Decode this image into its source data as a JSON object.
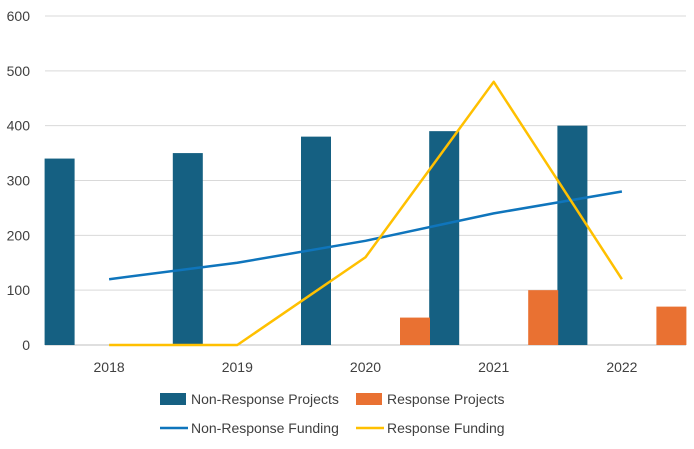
{
  "chart_data": {
    "type": "bar",
    "categories": [
      "2018",
      "2019",
      "2020",
      "2021",
      "2022"
    ],
    "ylim": [
      0,
      600
    ],
    "yticks": [
      0,
      100,
      200,
      300,
      400,
      500,
      600
    ],
    "grid": true,
    "legend_position": "bottom",
    "series": [
      {
        "name": "Non-Response Projects",
        "kind": "bar",
        "color": "#156082",
        "values": [
          340,
          350,
          380,
          390,
          400
        ]
      },
      {
        "name": "Response Projects",
        "kind": "bar",
        "color": "#E97132",
        "values": [
          0,
          0,
          50,
          100,
          70
        ]
      },
      {
        "name": "Non-Response Funding",
        "kind": "line",
        "color": "#0F75BC",
        "values": [
          120,
          150,
          190,
          240,
          280
        ]
      },
      {
        "name": "Response Funding",
        "kind": "line",
        "color": "#FFC000",
        "values": [
          0,
          0,
          160,
          480,
          120
        ]
      }
    ]
  }
}
